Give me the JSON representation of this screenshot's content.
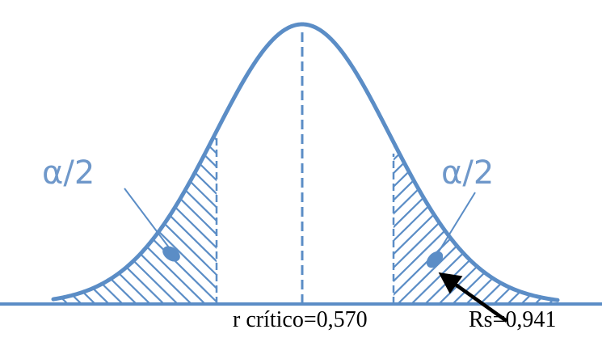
{
  "labels": {
    "left_alpha": "α/2",
    "right_alpha": "α/2",
    "critical_value": "r crítico=0,570",
    "rs_value": "Rs=0,941"
  },
  "colors": {
    "curve": "#5b8dc6",
    "label_alpha": "#6f98ca",
    "text": "#000000",
    "arrow": "#000000"
  }
}
